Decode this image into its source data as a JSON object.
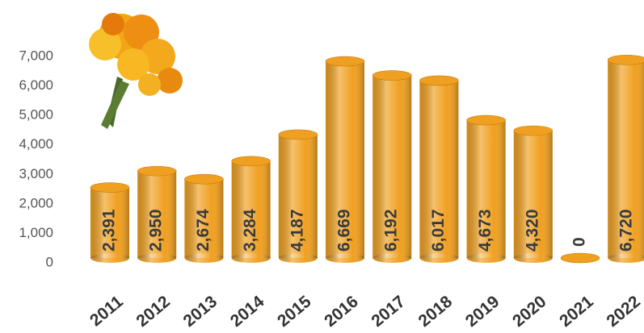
{
  "chart_data": {
    "type": "bar",
    "categories": [
      "2011",
      "2012",
      "2013",
      "2014",
      "2015",
      "2016",
      "2017",
      "2018",
      "2019",
      "2020",
      "2021",
      "2022"
    ],
    "values": [
      2391,
      2950,
      2674,
      3284,
      4187,
      6669,
      6192,
      6017,
      4673,
      4320,
      0,
      6720
    ],
    "value_labels": [
      "2,391",
      "2,950",
      "2,674",
      "3,284",
      "4,187",
      "6,669",
      "6,192",
      "6,017",
      "4,673",
      "4,320",
      "0",
      "6,720"
    ],
    "color": "#f0a020",
    "ylim": [
      0,
      7000
    ],
    "yticks": [
      0,
      {
        "value": 1000,
        "label": "1,000"
      },
      {
        "value": 2000,
        "label": "2,000"
      },
      {
        "value": 3000,
        "label": "3,000"
      },
      {
        "value": 4000,
        "label": "4,000"
      },
      {
        "value": 5000,
        "label": "5,000"
      },
      {
        "value": 6000,
        "label": "6,000"
      },
      {
        "value": 7000,
        "label": "7,000"
      }
    ],
    "grid": false
  }
}
